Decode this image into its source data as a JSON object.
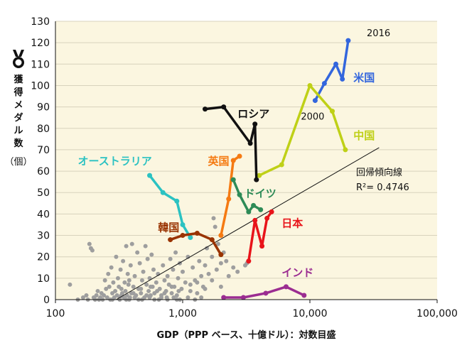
{
  "chart_data": {
    "type": "scatter",
    "xlabel": "GDP（PPP ベース、十億ドル）：対数目盛",
    "ylabel": "獲得メダル数",
    "ylabel_sub": "（個）",
    "xscale": "log",
    "xlim": [
      100,
      100000
    ],
    "ylim": [
      0,
      130
    ],
    "x_ticks": [
      {
        "value": 100,
        "label": "100"
      },
      {
        "value": 1000,
        "label": "1,000"
      },
      {
        "value": 10000,
        "label": "10,000"
      },
      {
        "value": 100000,
        "label": "100,000"
      }
    ],
    "y_ticks": [
      0,
      10,
      20,
      30,
      40,
      50,
      60,
      70,
      80,
      90,
      100,
      110,
      120,
      130
    ],
    "y_grid": true,
    "plot_background": "#FBF6E0",
    "grid_color": "#D8D2BC",
    "icon": "medal-icon",
    "regression": {
      "label": "回帰傾向線",
      "r2_label": "R²= 0.4746",
      "from": [
        300,
        0
      ],
      "to": [
        35000,
        71
      ],
      "color": "#111111"
    },
    "annotations": [
      {
        "text": "2016",
        "x": 28000,
        "y": 123,
        "color": "#111111"
      },
      {
        "text": "2000",
        "x": 8500,
        "y": 84,
        "color": "#111111"
      }
    ],
    "series": [
      {
        "name": "米国",
        "color": "#3366DD",
        "label_x": 22000,
        "label_y": 102,
        "points": [
          [
            11000,
            93
          ],
          [
            13000,
            101
          ],
          [
            16000,
            110
          ],
          [
            18000,
            103
          ],
          [
            20000,
            121
          ]
        ]
      },
      {
        "name": "中国",
        "color": "#BFD017",
        "label_x": 22000,
        "label_y": 75,
        "points": [
          [
            4000,
            58
          ],
          [
            6000,
            63
          ],
          [
            10000,
            100
          ],
          [
            15000,
            88
          ],
          [
            19000,
            70
          ]
        ]
      },
      {
        "name": "ロシア",
        "color": "#111111",
        "label_x": 2700,
        "label_y": 85,
        "points": [
          [
            1500,
            89
          ],
          [
            2100,
            90
          ],
          [
            3400,
            73
          ],
          [
            3700,
            82
          ],
          [
            3800,
            56
          ]
        ]
      },
      {
        "name": "英国",
        "color": "#F57A12",
        "label_x": 1580,
        "label_y": 63,
        "points": [
          [
            2000,
            30
          ],
          [
            2300,
            47
          ],
          [
            2500,
            65
          ],
          [
            2800,
            67
          ]
        ]
      },
      {
        "name": "ドイツ",
        "color": "#2E8B57",
        "label_x": 3050,
        "label_y": 48,
        "points": [
          [
            2500,
            56
          ],
          [
            2800,
            49
          ],
          [
            3300,
            41
          ],
          [
            3600,
            44
          ],
          [
            4100,
            42
          ]
        ]
      },
      {
        "name": "日本",
        "color": "#E8141A",
        "label_x": 6000,
        "label_y": 34,
        "points": [
          [
            3300,
            18
          ],
          [
            3700,
            37
          ],
          [
            4200,
            25
          ],
          [
            4600,
            38
          ],
          [
            5000,
            41
          ]
        ]
      },
      {
        "name": "インド",
        "color": "#9B2D91",
        "label_x": 6000,
        "label_y": 11,
        "points": [
          [
            2100,
            1
          ],
          [
            3000,
            1
          ],
          [
            4500,
            3
          ],
          [
            6500,
            6
          ],
          [
            9000,
            2
          ]
        ]
      },
      {
        "name": "オーストラリア",
        "color": "#2BC2C2",
        "label_x": 150,
        "label_y": 63,
        "points": [
          [
            550,
            58
          ],
          [
            700,
            50
          ],
          [
            900,
            46
          ],
          [
            1000,
            35
          ],
          [
            1150,
            29
          ]
        ]
      },
      {
        "name": "韓国",
        "color": "#993300",
        "label_x": 640,
        "label_y": 32,
        "points": [
          [
            800,
            28
          ],
          [
            1000,
            30
          ],
          [
            1300,
            31
          ],
          [
            1700,
            28
          ],
          [
            2000,
            21
          ]
        ]
      }
    ],
    "others": {
      "color": "#9E9E9E",
      "points": [
        [
          130,
          7
        ],
        [
          150,
          0
        ],
        [
          165,
          1
        ],
        [
          175,
          2
        ],
        [
          180,
          0
        ],
        [
          185,
          26
        ],
        [
          190,
          24
        ],
        [
          195,
          23
        ],
        [
          200,
          1
        ],
        [
          205,
          0
        ],
        [
          210,
          2
        ],
        [
          215,
          4
        ],
        [
          220,
          0
        ],
        [
          225,
          1
        ],
        [
          230,
          3
        ],
        [
          235,
          0
        ],
        [
          240,
          2
        ],
        [
          245,
          9
        ],
        [
          250,
          5
        ],
        [
          255,
          1
        ],
        [
          260,
          12
        ],
        [
          265,
          6
        ],
        [
          270,
          0
        ],
        [
          275,
          15
        ],
        [
          280,
          3
        ],
        [
          285,
          8
        ],
        [
          290,
          1
        ],
        [
          295,
          4
        ],
        [
          300,
          20
        ],
        [
          305,
          2
        ],
        [
          310,
          10
        ],
        [
          315,
          6
        ],
        [
          320,
          0
        ],
        [
          325,
          14
        ],
        [
          330,
          5
        ],
        [
          335,
          3
        ],
        [
          340,
          18
        ],
        [
          345,
          1
        ],
        [
          350,
          8
        ],
        [
          355,
          4
        ],
        [
          360,
          25
        ],
        [
          365,
          2
        ],
        [
          370,
          12
        ],
        [
          375,
          7
        ],
        [
          380,
          9
        ],
        [
          385,
          1
        ],
        [
          390,
          16
        ],
        [
          395,
          3
        ],
        [
          400,
          26
        ],
        [
          410,
          6
        ],
        [
          420,
          11
        ],
        [
          430,
          2
        ],
        [
          440,
          22
        ],
        [
          450,
          5
        ],
        [
          460,
          17
        ],
        [
          470,
          3
        ],
        [
          480,
          9
        ],
        [
          490,
          13
        ],
        [
          500,
          1
        ],
        [
          510,
          25
        ],
        [
          520,
          7
        ],
        [
          530,
          19
        ],
        [
          540,
          4
        ],
        [
          550,
          10
        ],
        [
          560,
          2
        ],
        [
          570,
          21
        ],
        [
          580,
          6
        ],
        [
          590,
          14
        ],
        [
          600,
          3
        ],
        [
          620,
          8
        ],
        [
          640,
          12
        ],
        [
          660,
          5
        ],
        [
          680,
          1
        ],
        [
          700,
          16
        ],
        [
          720,
          9
        ],
        [
          740,
          4
        ],
        [
          760,
          11
        ],
        [
          780,
          7
        ],
        [
          800,
          19
        ],
        [
          820,
          3
        ],
        [
          840,
          14
        ],
        [
          860,
          6
        ],
        [
          880,
          22
        ],
        [
          900,
          2
        ],
        [
          920,
          10
        ],
        [
          950,
          17
        ],
        [
          980,
          5
        ],
        [
          1000,
          13
        ],
        [
          1050,
          8
        ],
        [
          1100,
          20
        ],
        [
          1150,
          4
        ],
        [
          1200,
          15
        ],
        [
          1250,
          9
        ],
        [
          1300,
          3
        ],
        [
          1350,
          18
        ],
        [
          1400,
          11
        ],
        [
          1450,
          6
        ],
        [
          1500,
          16
        ],
        [
          1550,
          24
        ],
        [
          1600,
          12
        ],
        [
          1700,
          20
        ],
        [
          1750,
          38
        ],
        [
          1800,
          34
        ],
        [
          1850,
          14
        ],
        [
          1900,
          26
        ],
        [
          2000,
          17
        ],
        [
          2100,
          22
        ],
        [
          2200,
          18
        ],
        [
          2300,
          11
        ],
        [
          2500,
          15
        ],
        [
          2700,
          13
        ],
        [
          3100,
          16
        ],
        [
          3200,
          17
        ],
        [
          280,
          0
        ],
        [
          320,
          1
        ],
        [
          360,
          0
        ],
        [
          420,
          1
        ],
        [
          480,
          0
        ],
        [
          520,
          2
        ],
        [
          600,
          0
        ],
        [
          680,
          2
        ],
        [
          760,
          0
        ],
        [
          850,
          1
        ],
        [
          950,
          0
        ],
        [
          1100,
          1
        ],
        [
          1250,
          0
        ],
        [
          1400,
          1
        ],
        [
          450,
          0
        ],
        [
          550,
          1
        ],
        [
          650,
          0
        ],
        [
          750,
          1
        ],
        [
          900,
          0
        ],
        [
          380,
          0
        ],
        [
          330,
          2
        ],
        [
          410,
          3
        ],
        [
          470,
          5
        ],
        [
          560,
          6
        ],
        [
          630,
          4
        ],
        [
          720,
          3
        ],
        [
          820,
          6
        ],
        [
          930,
          4
        ],
        [
          1150,
          7
        ],
        [
          1300,
          8
        ],
        [
          1500,
          5
        ],
        [
          1700,
          9
        ],
        [
          2000,
          6
        ]
      ]
    }
  }
}
